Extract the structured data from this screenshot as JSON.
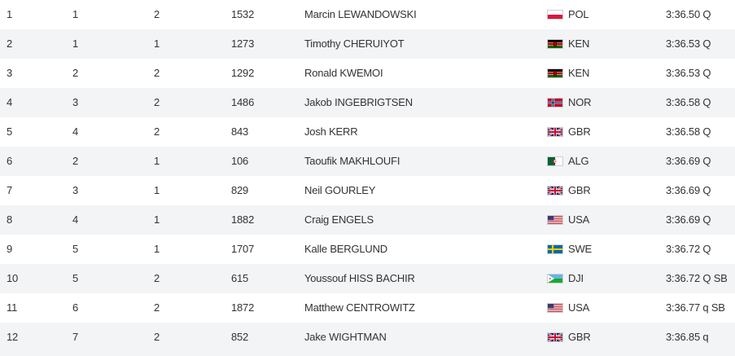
{
  "rows": [
    {
      "rank": "1",
      "pos": "1",
      "heat": "2",
      "bib": "1532",
      "name": "Marcin LEWANDOWSKI",
      "flag": "poland-flag-icon",
      "nat": "POL",
      "mark": "3:36.50 Q"
    },
    {
      "rank": "2",
      "pos": "1",
      "heat": "1",
      "bib": "1273",
      "name": "Timothy CHERUIYOT",
      "flag": "kenya-flag-icon",
      "nat": "KEN",
      "mark": "3:36.53 Q"
    },
    {
      "rank": "3",
      "pos": "2",
      "heat": "2",
      "bib": "1292",
      "name": "Ronald KWEMOI",
      "flag": "kenya-flag-icon",
      "nat": "KEN",
      "mark": "3:36.53 Q"
    },
    {
      "rank": "4",
      "pos": "3",
      "heat": "2",
      "bib": "1486",
      "name": "Jakob INGEBRIGTSEN",
      "flag": "norway-flag-icon",
      "nat": "NOR",
      "mark": "3:36.58 Q"
    },
    {
      "rank": "5",
      "pos": "4",
      "heat": "2",
      "bib": "843",
      "name": "Josh KERR",
      "flag": "uk-flag-icon",
      "nat": "GBR",
      "mark": "3:36.58 Q"
    },
    {
      "rank": "6",
      "pos": "2",
      "heat": "1",
      "bib": "106",
      "name": "Taoufik MAKHLOUFI",
      "flag": "algeria-flag-icon",
      "nat": "ALG",
      "mark": "3:36.69 Q"
    },
    {
      "rank": "7",
      "pos": "3",
      "heat": "1",
      "bib": "829",
      "name": "Neil GOURLEY",
      "flag": "uk-flag-icon",
      "nat": "GBR",
      "mark": "3:36.69 Q"
    },
    {
      "rank": "8",
      "pos": "4",
      "heat": "1",
      "bib": "1882",
      "name": "Craig ENGELS",
      "flag": "usa-flag-icon",
      "nat": "USA",
      "mark": "3:36.69 Q"
    },
    {
      "rank": "9",
      "pos": "5",
      "heat": "1",
      "bib": "1707",
      "name": "Kalle BERGLUND",
      "flag": "sweden-flag-icon",
      "nat": "SWE",
      "mark": "3:36.72 Q"
    },
    {
      "rank": "10",
      "pos": "5",
      "heat": "2",
      "bib": "615",
      "name": "Youssouf HISS BACHIR",
      "flag": "djibouti-flag-icon",
      "nat": "DJI",
      "mark": "3:36.72 Q SB"
    },
    {
      "rank": "11",
      "pos": "6",
      "heat": "2",
      "bib": "1872",
      "name": "Matthew CENTROWITZ",
      "flag": "usa-flag-icon",
      "nat": "USA",
      "mark": "3:36.77 q SB"
    },
    {
      "rank": "12",
      "pos": "7",
      "heat": "2",
      "bib": "852",
      "name": "Jake WIGHTMAN",
      "flag": "uk-flag-icon",
      "nat": "GBR",
      "mark": "3:36.85 q"
    }
  ],
  "colors": {
    "row_even": "#f3f4f6",
    "row_odd": "#ffffff",
    "text": "#333333"
  }
}
